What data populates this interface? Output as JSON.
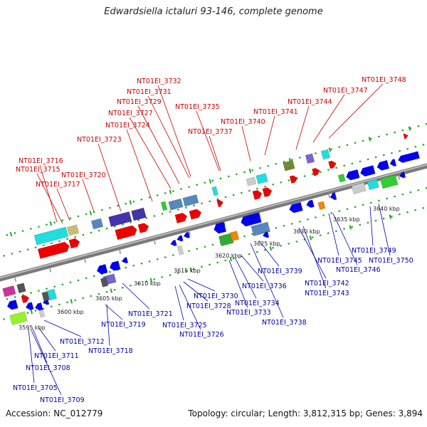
{
  "title": "Edwardsiella ictaluri 93-146, complete genome",
  "accession": "Accession: NC_012779",
  "topology": "Topology: circular; Length: 3,812,315 bp; Genes: 3,894",
  "colors": {
    "forward": "#ee0000",
    "reverse": "#0000ee",
    "label_forward": "#cc0000",
    "label_reverse": "#0000aa",
    "backbone": "#888888",
    "tick": "#22aa22"
  },
  "scale_labels": [
    "3595 kbp",
    "3600 kbp",
    "3605 kbp",
    "3610 kbp",
    "3615 kbp",
    "3620 kbp",
    "3625 kbp",
    "3630 kbp",
    "3635 kbp",
    "3640 kbp"
  ],
  "forward_labels": [
    "NT01EI_3716",
    "NT01EI_3715",
    "NT01EI_3717",
    "NT01EI_3720",
    "NT01EI_3723",
    "NT01EI_3724",
    "NT01EI_3727",
    "NT01EI_3729",
    "NT01EI_3731",
    "NT01EI_3732",
    "NT01EI_3735",
    "NT01EI_3737",
    "NT01EI_3740",
    "NT01EI_3741",
    "NT01EI_3744",
    "NT01EI_3747",
    "NT01EI_3748"
  ],
  "reverse_labels": [
    "NT01EI_3705",
    "NT01EI_3709",
    "NT01EI_3708",
    "NT01EI_3711",
    "NT01EI_3712",
    "NT01EI_3718",
    "NT01EI_3719",
    "NT01EI_3721",
    "NT01EI_3725",
    "NT01EI_3726",
    "NT01EI_3728",
    "NT01EI_3730",
    "NT01EI_3733",
    "NT01EI_3734",
    "NT01EI_3736",
    "NT01EI_3738",
    "NT01EI_3739",
    "NT01EI_3742",
    "NT01EI_3743",
    "NT01EI_3745",
    "NT01EI_3746",
    "NT01EI_3749",
    "NT01EI_3750"
  ]
}
